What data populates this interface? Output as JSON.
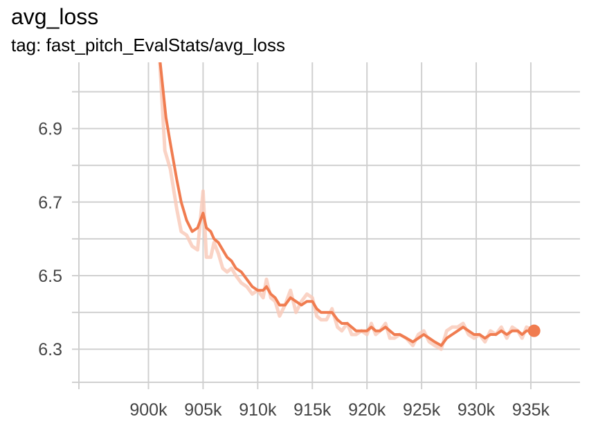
{
  "header": {
    "title": "avg_loss",
    "subtitle": "tag: fast_pitch_EvalStats/avg_loss"
  },
  "chart_data": {
    "type": "line",
    "title": "avg_loss",
    "xlabel": "",
    "ylabel": "",
    "xlim": [
      893000,
      939500
    ],
    "ylim": [
      6.21,
      7.08
    ],
    "x_ticks": [
      900000,
      905000,
      910000,
      915000,
      920000,
      925000,
      930000,
      935000
    ],
    "x_tick_labels": [
      "900k",
      "905k",
      "910k",
      "915k",
      "920k",
      "925k",
      "930k",
      "935k"
    ],
    "y_ticks": [
      6.3,
      6.5,
      6.7,
      6.9
    ],
    "y_tick_labels": [
      "6.3",
      "6.5",
      "6.7",
      "6.9"
    ],
    "grid": true,
    "legend": "none",
    "colors": {
      "smoothed": "#f07c50",
      "raw": "#f9c8b6"
    },
    "series": [
      {
        "role": "smoothed",
        "x": [
          901000,
          901600,
          902000,
          902600,
          903000,
          903500,
          904000,
          904500,
          905000,
          905300,
          905700,
          906000,
          906400,
          906800,
          907200,
          907600,
          908000,
          908500,
          909000,
          909500,
          910000,
          910500,
          910800,
          911200,
          911600,
          912000,
          912500,
          913000,
          913500,
          914000,
          914500,
          915000,
          915400,
          915800,
          916300,
          916800,
          917300,
          917700,
          918200,
          918600,
          919000,
          919500,
          920000,
          920400,
          920800,
          921200,
          921700,
          922100,
          922500,
          923000,
          923600,
          924200,
          924700,
          925200,
          925700,
          926200,
          926800,
          927300,
          927800,
          928300,
          928800,
          929300,
          929800,
          930300,
          930800,
          931300,
          931800,
          932300,
          932800,
          933300,
          933800,
          934200,
          934600,
          935300
        ],
        "y": [
          7.1,
          6.93,
          6.86,
          6.76,
          6.7,
          6.65,
          6.62,
          6.63,
          6.67,
          6.63,
          6.62,
          6.6,
          6.59,
          6.57,
          6.55,
          6.54,
          6.52,
          6.51,
          6.49,
          6.47,
          6.46,
          6.46,
          6.47,
          6.45,
          6.44,
          6.42,
          6.42,
          6.44,
          6.43,
          6.42,
          6.43,
          6.43,
          6.41,
          6.4,
          6.4,
          6.4,
          6.38,
          6.37,
          6.37,
          6.36,
          6.35,
          6.35,
          6.35,
          6.36,
          6.35,
          6.35,
          6.36,
          6.35,
          6.34,
          6.34,
          6.33,
          6.32,
          6.33,
          6.34,
          6.33,
          6.32,
          6.31,
          6.33,
          6.34,
          6.35,
          6.36,
          6.35,
          6.34,
          6.34,
          6.33,
          6.34,
          6.34,
          6.35,
          6.34,
          6.35,
          6.35,
          6.34,
          6.35,
          6.35
        ]
      },
      {
        "role": "raw",
        "x": [
          901000,
          901500,
          902000,
          902600,
          903000,
          903500,
          904000,
          904500,
          905000,
          905300,
          905700,
          906000,
          906400,
          906800,
          907200,
          907600,
          908000,
          908500,
          909000,
          909500,
          910000,
          910500,
          910800,
          911200,
          911600,
          912000,
          912500,
          913000,
          913500,
          914000,
          914500,
          915000,
          915400,
          915800,
          916300,
          916800,
          917300,
          917700,
          918200,
          918600,
          919000,
          919500,
          920000,
          920400,
          920800,
          921200,
          921700,
          922100,
          922500,
          923000,
          923600,
          924200,
          924700,
          925200,
          925700,
          926200,
          926800,
          927300,
          927800,
          928300,
          928800,
          929300,
          929800,
          930300,
          930800,
          931300,
          931800,
          932300,
          932800,
          933300,
          933800,
          934200,
          934600,
          935300
        ],
        "y": [
          7.1,
          6.84,
          6.79,
          6.68,
          6.62,
          6.61,
          6.58,
          6.57,
          6.73,
          6.55,
          6.55,
          6.59,
          6.56,
          6.52,
          6.51,
          6.52,
          6.5,
          6.48,
          6.47,
          6.45,
          6.46,
          6.44,
          6.49,
          6.44,
          6.43,
          6.39,
          6.42,
          6.46,
          6.4,
          6.43,
          6.45,
          6.44,
          6.39,
          6.38,
          6.38,
          6.41,
          6.36,
          6.35,
          6.37,
          6.34,
          6.34,
          6.35,
          6.34,
          6.37,
          6.34,
          6.35,
          6.37,
          6.33,
          6.33,
          6.34,
          6.33,
          6.31,
          6.34,
          6.35,
          6.32,
          6.31,
          6.3,
          6.35,
          6.36,
          6.36,
          6.37,
          6.34,
          6.33,
          6.34,
          6.32,
          6.35,
          6.34,
          6.36,
          6.33,
          6.36,
          6.35,
          6.33,
          6.36,
          6.35
        ]
      }
    ]
  }
}
